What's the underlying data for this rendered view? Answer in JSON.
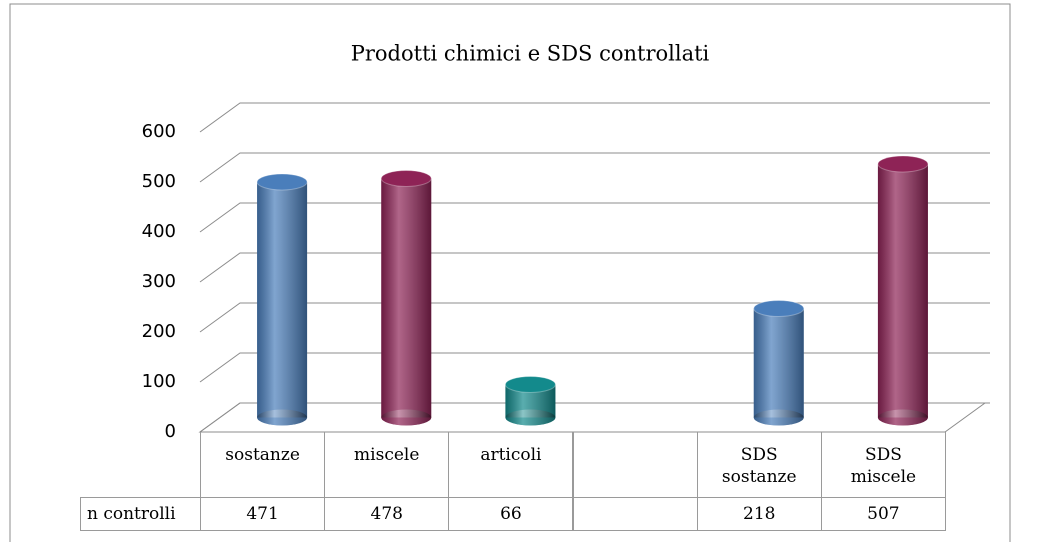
{
  "chart_data": {
    "type": "bar",
    "title": "Prodotti chimici e SDS controllati",
    "categories": [
      "sostanze",
      "miscele",
      "articoli",
      null,
      "SDS sostanze",
      "SDS miscele"
    ],
    "series": [
      {
        "name": "n controlli",
        "colors": [
          "#4a7ebb",
          "#8e2356",
          "#138a8c",
          null,
          "#4a7ebb",
          "#8e2356"
        ],
        "values": [
          471,
          478,
          66,
          null,
          218,
          507
        ]
      }
    ],
    "ylim": [
      0,
      600
    ],
    "yticks": [
      0,
      100,
      200,
      300,
      400,
      500,
      600
    ],
    "grid": true,
    "data_table": true
  }
}
